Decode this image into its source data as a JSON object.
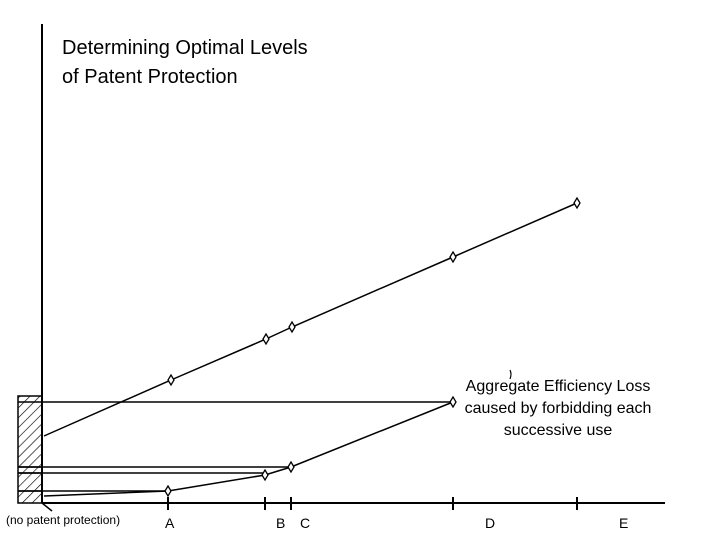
{
  "title": {
    "line1": "Determining Optimal Levels",
    "line2": "of Patent Protection"
  },
  "annotation": {
    "line1": "Aggregate Efficiency Loss",
    "line2": "caused by forbidding each",
    "line3": "successive use"
  },
  "x_labels": {
    "origin": "(no patent protection)",
    "a": "A",
    "b": "B",
    "c": "C",
    "d": "D",
    "e": "E"
  },
  "colors": {
    "ink": "#000000",
    "background": "#ffffff"
  }
}
